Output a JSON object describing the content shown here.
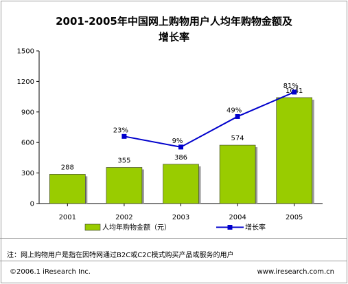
{
  "chart_data": {
    "type": "bar",
    "title_line1": "2001-2005年中国网上购物用户人均年购物金额及",
    "title_line2": "增长率",
    "categories": [
      "2001",
      "2002",
      "2003",
      "2004",
      "2005"
    ],
    "series": [
      {
        "name": "人均年购物金额（元）",
        "type": "bar",
        "values": [
          288,
          355,
          386,
          574,
          1041
        ],
        "color": "#99cc00"
      },
      {
        "name": "增长率",
        "type": "line",
        "values": [
          null,
          23,
          9,
          49,
          81
        ],
        "labels": [
          "",
          "23%",
          "9%",
          "49%",
          "81%"
        ],
        "color": "#0000cc"
      }
    ],
    "y_ticks": [
      "0",
      "300",
      "600",
      "900",
      "1200",
      "1500"
    ],
    "ylim": [
      0,
      1500
    ],
    "grid": false,
    "legend_position": "bottom"
  },
  "footnote": "注：网上购物用户是指在因特网通过B2C或C2C模式购买产品或服务的用户",
  "copyright": "©2006.1  iResearch Inc.",
  "website": "www.iresearch.com.cn"
}
